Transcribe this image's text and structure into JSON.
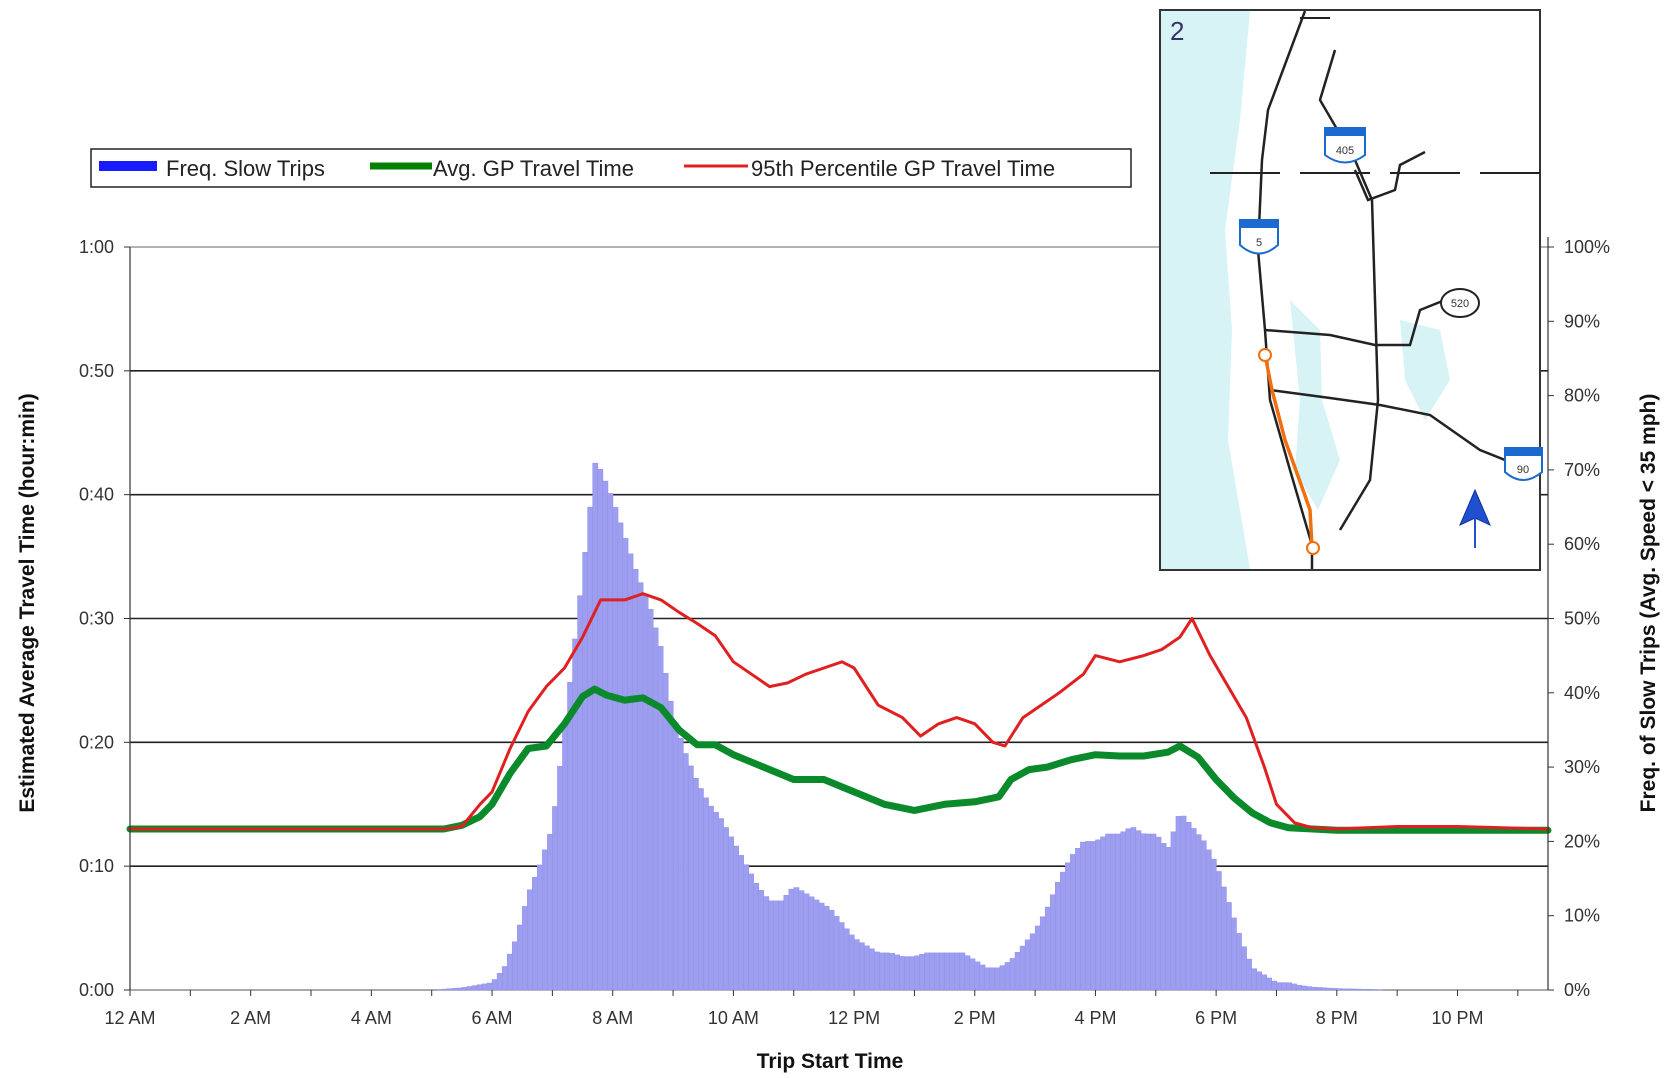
{
  "chart_data": {
    "type": "bar",
    "xlabel": "Trip Start Time",
    "ylabel": "Estimated Average Travel Time (hour:min)",
    "y2label": "Freq. of Slow Trips (Avg. Speed < 35 mph)",
    "x_ticks": [
      "12 AM",
      "2 AM",
      "4 AM",
      "6 AM",
      "8 AM",
      "10 AM",
      "12 PM",
      "2 PM",
      "4 PM",
      "6 PM",
      "8 PM",
      "10 PM"
    ],
    "y_ticks": [
      "0:00",
      "0:10",
      "0:20",
      "0:30",
      "0:40",
      "0:50",
      "1:00"
    ],
    "y2_ticks": [
      "0%",
      "10%",
      "20%",
      "30%",
      "40%",
      "50%",
      "60%",
      "70%",
      "80%",
      "90%",
      "100%"
    ],
    "xlim_hours": [
      0,
      23.5
    ],
    "ylim_minutes": [
      0,
      60
    ],
    "y2lim_percent": [
      0,
      100
    ],
    "grid": "horizontal",
    "legend_position": "top",
    "legend": [
      {
        "label": "Freq. Slow Trips",
        "color": "#1a1aff"
      },
      {
        "label": "Avg. GP Travel Time",
        "color": "#008000"
      },
      {
        "label": "95th Percentile GP Travel Time",
        "color": "#e02020"
      }
    ],
    "series": [
      {
        "name": "Freq. Slow Trips",
        "axis": "right",
        "unit": "percent",
        "color": "#9e9ef0",
        "x": [
          5.0,
          5.5,
          6.0,
          6.2,
          6.4,
          6.6,
          6.8,
          7.0,
          7.2,
          7.4,
          7.6,
          7.7,
          7.8,
          8.0,
          8.2,
          8.4,
          8.6,
          8.8,
          9.0,
          9.2,
          9.4,
          9.6,
          9.8,
          10.0,
          10.2,
          10.4,
          10.6,
          10.8,
          11.0,
          11.2,
          11.4,
          11.6,
          11.8,
          12.0,
          12.2,
          12.4,
          12.6,
          12.8,
          13.0,
          13.2,
          13.4,
          13.6,
          13.8,
          14.0,
          14.2,
          14.4,
          14.6,
          14.8,
          15.0,
          15.2,
          15.4,
          15.6,
          15.8,
          16.0,
          16.2,
          16.4,
          16.6,
          16.8,
          17.0,
          17.2,
          17.4,
          17.6,
          17.8,
          18.0,
          18.2,
          18.4,
          18.6,
          18.8,
          19.0,
          19.2,
          19.4,
          19.6,
          19.8,
          20.0,
          20.5,
          21.0,
          21.5,
          22.0,
          22.5,
          23.0,
          23.5
        ],
        "values": [
          0,
          0.3,
          1,
          3,
          7,
          13,
          17,
          22,
          35,
          49,
          63,
          71,
          70,
          66,
          61,
          56,
          52,
          46,
          37,
          32,
          28,
          25,
          23,
          20,
          17,
          14,
          12,
          12,
          14,
          13,
          12,
          11,
          9,
          7,
          6,
          5,
          5,
          4.5,
          4.5,
          5,
          5,
          5,
          5,
          4,
          3,
          3,
          4,
          6,
          8,
          11,
          15,
          18,
          20,
          20,
          21,
          21,
          22,
          21,
          21,
          19,
          24,
          22,
          20,
          17,
          12,
          7,
          3,
          2,
          1,
          1,
          0.6,
          0.4,
          0.3,
          0.2,
          0.1,
          0,
          0,
          0,
          0,
          0,
          0
        ]
      },
      {
        "name": "Avg. GP Travel Time",
        "axis": "left",
        "unit": "minutes",
        "color": "#0a8a2a",
        "x": [
          0,
          5.2,
          5.5,
          5.8,
          6.0,
          6.3,
          6.6,
          6.9,
          7.2,
          7.5,
          7.7,
          7.9,
          8.2,
          8.5,
          8.8,
          9.1,
          9.4,
          9.7,
          10.0,
          10.5,
          11.0,
          11.5,
          12.0,
          12.5,
          13.0,
          13.5,
          14.0,
          14.4,
          14.6,
          14.9,
          15.2,
          15.6,
          16.0,
          16.4,
          16.8,
          17.2,
          17.4,
          17.7,
          18.0,
          18.3,
          18.6,
          18.9,
          19.2,
          19.6,
          20.0,
          21.0,
          22.0,
          23.5
        ],
        "values": [
          13,
          13,
          13.3,
          14,
          15,
          17.5,
          19.5,
          19.7,
          21.5,
          23.7,
          24.3,
          23.8,
          23.4,
          23.6,
          22.8,
          21,
          19.8,
          19.8,
          19,
          18,
          17,
          17,
          16,
          15,
          14.5,
          15,
          15.2,
          15.6,
          17,
          17.8,
          18,
          18.6,
          19,
          18.9,
          18.9,
          19.2,
          19.7,
          18.8,
          17,
          15.5,
          14.3,
          13.5,
          13.1,
          13,
          12.9,
          12.9,
          12.9,
          12.9
        ]
      },
      {
        "name": "95th Percentile GP Travel Time",
        "axis": "left",
        "unit": "minutes",
        "color": "#e02020",
        "x": [
          0,
          5.2,
          5.5,
          5.8,
          6.0,
          6.3,
          6.6,
          6.9,
          7.2,
          7.5,
          7.8,
          8.2,
          8.5,
          8.8,
          9.1,
          9.4,
          9.7,
          10.0,
          10.3,
          10.6,
          10.9,
          11.2,
          11.5,
          11.8,
          12.0,
          12.4,
          12.8,
          13.1,
          13.4,
          13.7,
          14.0,
          14.3,
          14.5,
          14.8,
          15.1,
          15.4,
          15.8,
          16.0,
          16.4,
          16.8,
          17.1,
          17.4,
          17.6,
          17.9,
          18.2,
          18.5,
          18.8,
          19.0,
          19.3,
          19.6,
          20.0,
          21.0,
          22.0,
          23.5
        ],
        "values": [
          13,
          13,
          13.2,
          15,
          16,
          19.5,
          22.5,
          24.5,
          26,
          28.5,
          31.5,
          31.5,
          32,
          31.5,
          30.5,
          29.6,
          28.6,
          26.5,
          25.5,
          24.5,
          24.8,
          25.5,
          26,
          26.5,
          26,
          23,
          22,
          20.5,
          21.5,
          22,
          21.5,
          20,
          19.7,
          22,
          23,
          24,
          25.5,
          27,
          26.5,
          27,
          27.5,
          28.5,
          30,
          27,
          24.5,
          22,
          18,
          15,
          13.5,
          13.1,
          13,
          13.2,
          13.2,
          13
        ]
      }
    ]
  },
  "map": {
    "panel_number": "2",
    "route_shields": [
      "405",
      "5",
      "520",
      "90"
    ]
  }
}
